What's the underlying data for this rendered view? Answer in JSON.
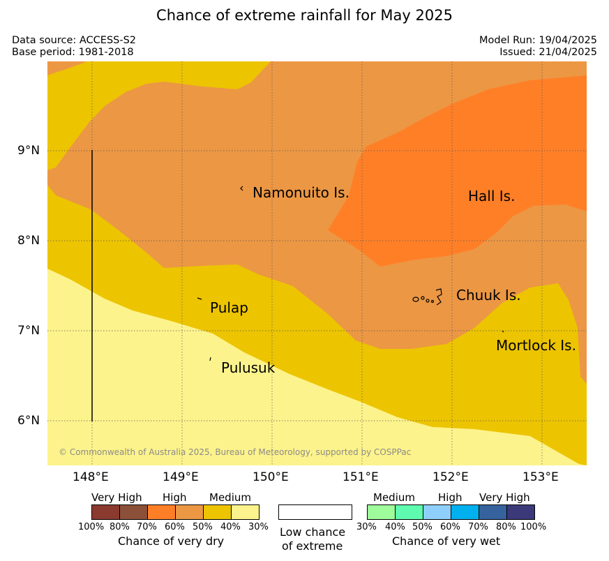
{
  "title": "Chance of extreme rainfall for May 2025",
  "meta": {
    "data_source": "Data source: ACCESS-S2",
    "base_period": "Base period: 1981-2018",
    "model_run": "Model Run: 19/04/2025",
    "issued": "Issued: 21/04/2025"
  },
  "map": {
    "lon_labels": [
      "148°E",
      "149°E",
      "150°E",
      "151°E",
      "152°E",
      "153°E"
    ],
    "lat_labels": [
      "9°N",
      "8°N",
      "7°N",
      "6°N"
    ],
    "places": {
      "namonuito": "Namonuito Is.",
      "hall": "Hall Is.",
      "pulap": "Pulap",
      "chuuk": "Chuuk Is.",
      "mortlock": "Mortlock Is.",
      "pulusuk": "Pulusuk"
    },
    "copyright": "© Commonwealth of Australia 2025, Bureau of Meteorology, supported by COSPPac",
    "colors": {
      "very_dry_70_80": "#ff7f27",
      "very_dry_60_70": "#ec9744",
      "very_dry_50_60": "#ecc400",
      "very_dry_30_50": "#fdf38c",
      "low_chance": "#ffffff"
    }
  },
  "legend": {
    "dry": {
      "categories": [
        "Very High",
        "High",
        "Medium"
      ],
      "ticks": [
        "100%",
        "80%",
        "70%",
        "60%",
        "50%",
        "40%",
        "30%"
      ],
      "caption": "Chance of very dry",
      "colors": [
        "#8b3a2f",
        "#8c5039",
        "#ff7f27",
        "#ec9744",
        "#ecc400",
        "#fdf38c"
      ]
    },
    "low": {
      "caption_line1": "Low chance",
      "caption_line2": "of extreme"
    },
    "wet": {
      "categories": [
        "Medium",
        "High",
        "Very High"
      ],
      "ticks": [
        "30%",
        "40%",
        "50%",
        "60%",
        "70%",
        "80%",
        "100%"
      ],
      "caption": "Chance of very wet",
      "colors": [
        "#9ffc9b",
        "#5ffcb0",
        "#8ed0fb",
        "#00b0ef",
        "#36629e",
        "#3b3979"
      ]
    }
  }
}
